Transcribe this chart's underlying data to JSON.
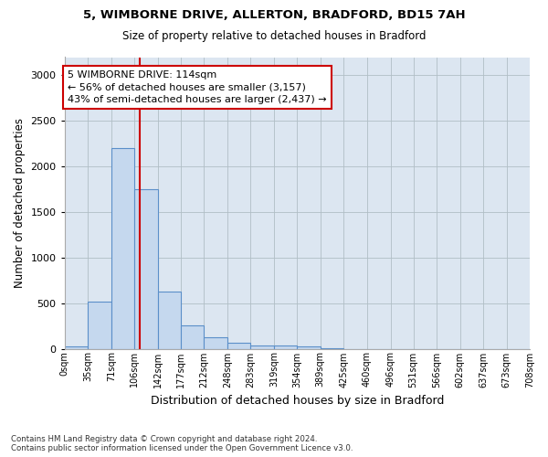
{
  "title1": "5, WIMBORNE DRIVE, ALLERTON, BRADFORD, BD15 7AH",
  "title2": "Size of property relative to detached houses in Bradford",
  "xlabel": "Distribution of detached houses by size in Bradford",
  "ylabel": "Number of detached properties",
  "bar_values": [
    30,
    520,
    2200,
    1750,
    630,
    260,
    125,
    70,
    40,
    35,
    25,
    5,
    0,
    0,
    0,
    0,
    0,
    0,
    0,
    0
  ],
  "bin_edges": [
    0,
    35,
    71,
    106,
    142,
    177,
    212,
    248,
    283,
    319,
    354,
    389,
    425,
    460,
    496,
    531,
    566,
    602,
    637,
    673,
    708
  ],
  "tick_labels": [
    "0sqm",
    "35sqm",
    "71sqm",
    "106sqm",
    "142sqm",
    "177sqm",
    "212sqm",
    "248sqm",
    "283sqm",
    "319sqm",
    "354sqm",
    "389sqm",
    "425sqm",
    "460sqm",
    "496sqm",
    "531sqm",
    "566sqm",
    "602sqm",
    "637sqm",
    "673sqm",
    "708sqm"
  ],
  "bar_color": "#c5d8ee",
  "bar_edge_color": "#5b8fc9",
  "vline_x": 114,
  "vline_color": "#cc0000",
  "annotation_line1": "5 WIMBORNE DRIVE: 114sqm",
  "annotation_line2": "← 56% of detached houses are smaller (3,157)",
  "annotation_line3": "43% of semi-detached houses are larger (2,437) →",
  "annotation_box_color": "#cc0000",
  "ylim": [
    0,
    3200
  ],
  "yticks": [
    0,
    500,
    1000,
    1500,
    2000,
    2500,
    3000
  ],
  "ax_bg_color": "#dce6f1",
  "background_color": "#ffffff",
  "grid_color": "#b0bec5",
  "footnote": "Contains HM Land Registry data © Crown copyright and database right 2024.\nContains public sector information licensed under the Open Government Licence v3.0."
}
